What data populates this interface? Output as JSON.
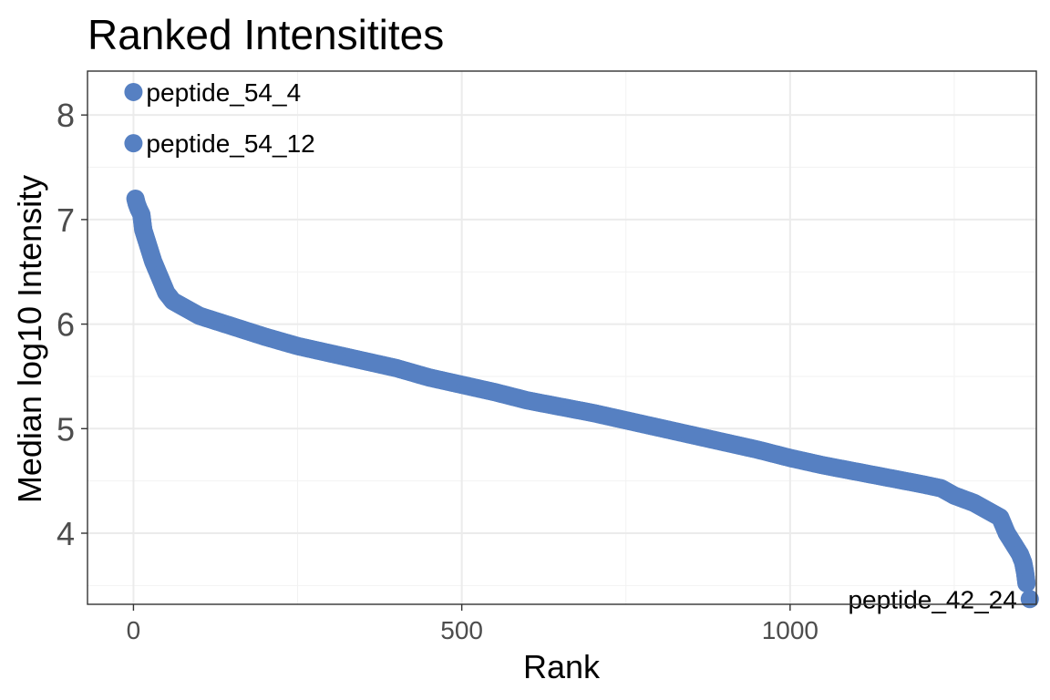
{
  "chart_data": {
    "type": "scatter",
    "title": "Ranked Intensitites",
    "xlabel": "Rank",
    "ylabel": "Median log10 Intensity",
    "xlim": [
      -70,
      1375
    ],
    "ylim": [
      3.32,
      8.42
    ],
    "x_ticks": [
      0,
      500,
      1000
    ],
    "x_tick_labels": [
      "0",
      "500",
      "1000"
    ],
    "y_ticks": [
      4,
      5,
      6,
      7,
      8
    ],
    "y_tick_labels": [
      "4",
      "5",
      "6",
      "7",
      "8"
    ],
    "grid": true,
    "point_color": "#5680C2",
    "curve_points": [
      [
        3,
        7.2
      ],
      [
        5,
        7.15
      ],
      [
        8,
        7.1
      ],
      [
        12,
        7.05
      ],
      [
        15,
        6.9
      ],
      [
        20,
        6.8
      ],
      [
        25,
        6.7
      ],
      [
        30,
        6.6
      ],
      [
        40,
        6.45
      ],
      [
        50,
        6.3
      ],
      [
        60,
        6.22
      ],
      [
        80,
        6.15
      ],
      [
        100,
        6.08
      ],
      [
        150,
        5.98
      ],
      [
        200,
        5.88
      ],
      [
        250,
        5.79
      ],
      [
        300,
        5.72
      ],
      [
        350,
        5.65
      ],
      [
        400,
        5.58
      ],
      [
        450,
        5.49
      ],
      [
        500,
        5.42
      ],
      [
        550,
        5.35
      ],
      [
        600,
        5.27
      ],
      [
        650,
        5.21
      ],
      [
        700,
        5.15
      ],
      [
        750,
        5.08
      ],
      [
        800,
        5.01
      ],
      [
        850,
        4.94
      ],
      [
        900,
        4.87
      ],
      [
        950,
        4.8
      ],
      [
        1000,
        4.72
      ],
      [
        1050,
        4.65
      ],
      [
        1100,
        4.59
      ],
      [
        1150,
        4.53
      ],
      [
        1200,
        4.47
      ],
      [
        1230,
        4.43
      ],
      [
        1250,
        4.36
      ],
      [
        1280,
        4.29
      ],
      [
        1300,
        4.22
      ],
      [
        1320,
        4.15
      ],
      [
        1330,
        4.0
      ],
      [
        1340,
        3.9
      ],
      [
        1350,
        3.8
      ],
      [
        1355,
        3.72
      ],
      [
        1358,
        3.62
      ],
      [
        1360,
        3.52
      ]
    ],
    "labeled_points": [
      {
        "x": 0,
        "y": 8.22,
        "label": "peptide_54_4",
        "side": "right"
      },
      {
        "x": 0,
        "y": 7.73,
        "label": "peptide_54_12",
        "side": "right"
      },
      {
        "x": 1365,
        "y": 3.37,
        "label": "peptide_42_24",
        "side": "left"
      }
    ]
  }
}
